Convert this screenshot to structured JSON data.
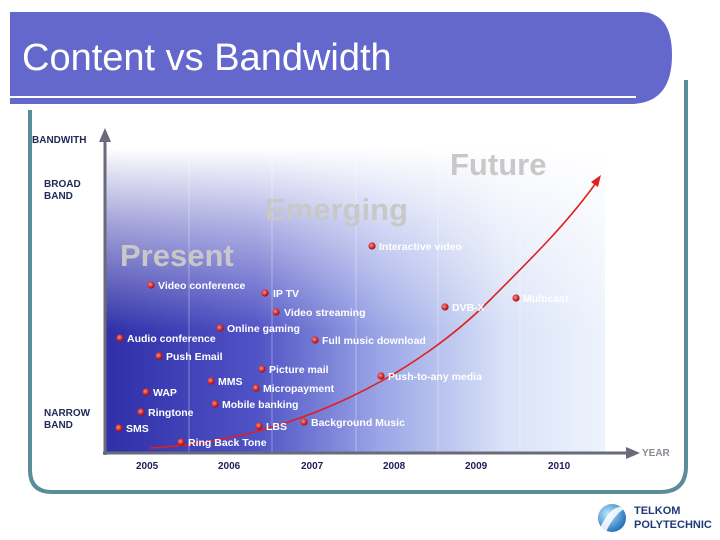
{
  "title": "Content vs Bandwidth",
  "axes": {
    "y_label": "BANDWITH",
    "y_top_lines": [
      "BROAD",
      "BAND"
    ],
    "y_bottom_lines": [
      "NARROW",
      "BAND"
    ],
    "x_label": "YEAR",
    "years": [
      "2005",
      "2006",
      "2007",
      "2008",
      "2009",
      "2010"
    ]
  },
  "phases": {
    "present": "Present",
    "emerging": "Emerging",
    "future": "Future"
  },
  "services": [
    {
      "label": "Video conference",
      "year": "2005"
    },
    {
      "label": "IP TV",
      "year": "2006"
    },
    {
      "label": "Video streaming",
      "year": "2006"
    },
    {
      "label": "Online gaming",
      "year": "2006"
    },
    {
      "label": "Audio conference",
      "year": "2005"
    },
    {
      "label": "Push Email",
      "year": "2005"
    },
    {
      "label": "Picture mail",
      "year": "2006"
    },
    {
      "label": "MMS",
      "year": "2006"
    },
    {
      "label": "WAP",
      "year": "2005"
    },
    {
      "label": "Micropayment",
      "year": "2006"
    },
    {
      "label": "Mobile banking",
      "year": "2006"
    },
    {
      "label": "Ringtone",
      "year": "2005"
    },
    {
      "label": "SMS",
      "year": "2005"
    },
    {
      "label": "LBS",
      "year": "2006"
    },
    {
      "label": "Ring Back Tone",
      "year": "2005"
    },
    {
      "label": "Interactive video",
      "year": "2008"
    },
    {
      "label": "Full music download",
      "year": "2007"
    },
    {
      "label": "Push-to-any media",
      "year": "2008"
    },
    {
      "label": "Background Music",
      "year": "2007"
    },
    {
      "label": "DVB-X",
      "year": "2009"
    },
    {
      "label": "Multicast",
      "year": "2009"
    }
  ],
  "logo": {
    "line1": "TELKOM",
    "line2": "POLYTECHNIC"
  },
  "colors": {
    "header": "#6467cc",
    "frame": "#5a8c99",
    "curve": "#e02020",
    "dot": "#d01818"
  }
}
